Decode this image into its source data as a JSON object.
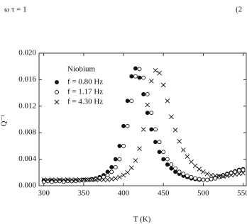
{
  "equation": {
    "text": "ω τ = 1",
    "number": "(2"
  },
  "chart_data": {
    "type": "scatter",
    "x_label": "T (K)",
    "y_label": "Q⁻¹",
    "legend_title": "Niobium",
    "legend": "upper left",
    "xlim": [
      294,
      554
    ],
    "xticks": [
      300,
      350,
      400,
      450,
      500,
      550
    ],
    "ylim": [
      0,
      0.02
    ],
    "yticks": [
      {
        "value": 0,
        "label": "0.000"
      },
      {
        "value": 0.004,
        "label": "0.004"
      },
      {
        "value": 0.008,
        "label": "0.008"
      },
      {
        "value": 0.012,
        "label": "0.012"
      },
      {
        "value": 0.016,
        "label": "0.016"
      },
      {
        "value": 0.02,
        "label": "0.020"
      }
    ],
    "x": [
      300,
      305,
      310,
      315,
      320,
      325,
      330,
      335,
      340,
      345,
      350,
      355,
      360,
      365,
      370,
      375,
      380,
      385,
      390,
      395,
      400,
      405,
      410,
      415,
      420,
      425,
      430,
      435,
      440,
      445,
      450,
      455,
      460,
      465,
      470,
      475,
      480,
      485,
      490,
      495,
      500,
      505,
      510,
      515,
      520,
      525,
      530,
      535,
      540,
      545,
      550
    ],
    "series": [
      {
        "name": "f = 0.80 Hz",
        "color": "#111111",
        "marker": "filled-circle",
        "values": [
          0.0008,
          0.0007,
          0.0008,
          0.0007,
          0.0008,
          0.0007,
          0.0008,
          0.0007,
          0.0008,
          0.0008,
          0.0009,
          0.0009,
          0.001,
          0.0011,
          0.0013,
          0.0016,
          0.0021,
          0.0028,
          0.004,
          0.006,
          0.009,
          0.0128,
          0.0165,
          0.0177,
          0.0163,
          0.0138,
          0.011,
          0.0085,
          0.0066,
          0.0051,
          0.004,
          0.0032,
          0.0026,
          0.0021,
          0.0018,
          0.0015,
          0.0013,
          0.0011,
          0.001,
          0.0009,
          0.0009,
          0.0009,
          0.001,
          0.0012,
          0.0014,
          0.0016,
          0.0018,
          0.002,
          0.0022,
          0.0024,
          0.0025
        ]
      },
      {
        "name": "f = 1.17 Hz",
        "color": "#111111",
        "marker": "open-circle",
        "values": [
          0.0006,
          0.0007,
          0.0006,
          0.0007,
          0.0007,
          0.0006,
          0.0007,
          0.0007,
          0.0007,
          0.0008,
          0.0008,
          0.0009,
          0.0009,
          0.001,
          0.0011,
          0.0013,
          0.0016,
          0.0021,
          0.0028,
          0.004,
          0.006,
          0.009,
          0.0128,
          0.0165,
          0.0176,
          0.0163,
          0.0138,
          0.011,
          0.0085,
          0.0066,
          0.0051,
          0.004,
          0.0032,
          0.0026,
          0.0021,
          0.0018,
          0.0015,
          0.0013,
          0.0011,
          0.001,
          0.0009,
          0.0009,
          0.001,
          0.0011,
          0.0013,
          0.0015,
          0.0017,
          0.0019,
          0.0021,
          0.0023,
          0.0024
        ]
      },
      {
        "name": "f = 4.30 Hz",
        "color": "#111111",
        "marker": "cross",
        "values": [
          0.0009,
          0.0009,
          0.0009,
          0.0009,
          0.0009,
          0.0009,
          0.0009,
          0.0009,
          0.0009,
          0.0009,
          0.0009,
          0.0009,
          0.0009,
          0.0009,
          0.0009,
          0.0009,
          0.0009,
          0.001,
          0.0011,
          0.0013,
          0.0016,
          0.002,
          0.0027,
          0.0038,
          0.0056,
          0.0085,
          0.0122,
          0.0158,
          0.0174,
          0.017,
          0.0152,
          0.0128,
          0.0104,
          0.0084,
          0.0067,
          0.0054,
          0.0044,
          0.0036,
          0.003,
          0.0025,
          0.0021,
          0.0018,
          0.0016,
          0.0015,
          0.0014,
          0.0014,
          0.0015,
          0.0016,
          0.0017,
          0.0018,
          0.0019
        ]
      }
    ]
  }
}
